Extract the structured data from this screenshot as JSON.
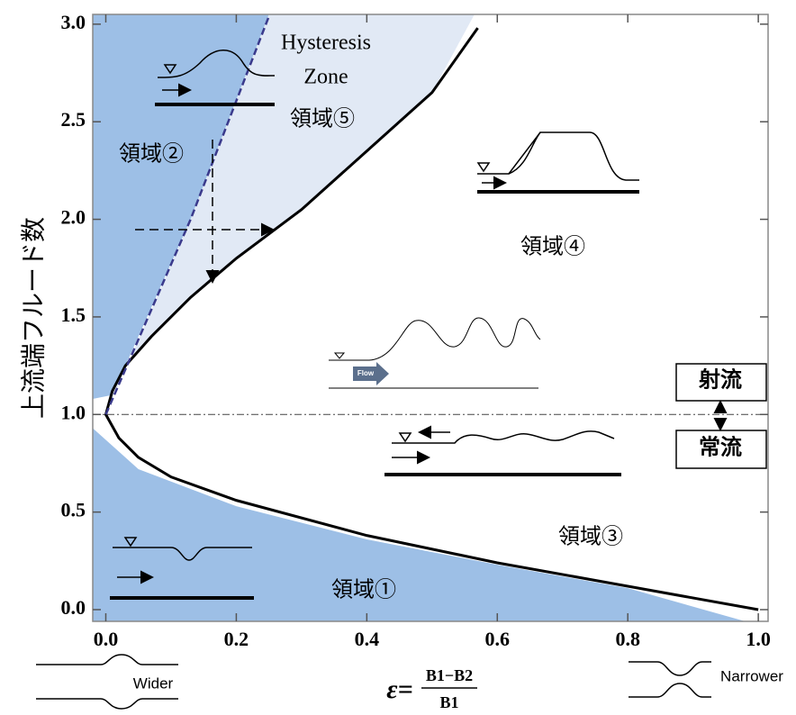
{
  "chart_data": {
    "type": "line",
    "ylabel": "上流端フルード数",
    "xlabel": {
      "symbol": "ε=",
      "numerator": "B1−B2",
      "denominator": "B1"
    },
    "xlim": [
      -0.02,
      1.015
    ],
    "ylim": [
      -0.06,
      3.05
    ],
    "xticks": [
      {
        "value": 0,
        "label": "0.0"
      },
      0.2,
      0.4,
      0.6,
      0.8,
      {
        "value": 1,
        "label": "1.0"
      }
    ],
    "yticks": [
      {
        "value": 0,
        "label": "0.0"
      },
      0.5,
      {
        "value": 1,
        "label": "1.0"
      },
      1.5,
      {
        "value": 2,
        "label": "2.0"
      },
      2.5,
      {
        "value": 3,
        "label": "3.0"
      }
    ],
    "hline": 1,
    "regions": [
      {
        "color": "#9dbfe6",
        "x": [
          -0.02,
          0.25,
          0.13,
          0.01,
          -0.02
        ],
        "y": [
          3.05,
          3.05,
          2.0,
          1.1,
          1.08
        ]
      },
      {
        "color": "#e1e9f5",
        "x": [
          0.25,
          0.565,
          0.5,
          0.4,
          0.3,
          0.2,
          0.13,
          0.07,
          0.03,
          0.01,
          0.0,
          0.13
        ],
        "y": [
          3.05,
          3.05,
          2.65,
          2.35,
          2.05,
          1.8,
          1.6,
          1.4,
          1.25,
          1.12,
          1.0,
          2.0
        ]
      },
      {
        "color": "#9dbfe6",
        "x": [
          -0.02,
          0.05,
          0.2,
          0.4,
          0.6,
          0.8,
          0.98,
          -0.02
        ],
        "y": [
          0.93,
          0.72,
          0.53,
          0.36,
          0.23,
          0.11,
          -0.06,
          -0.06
        ]
      }
    ],
    "lines": [
      {
        "color": "#000000",
        "dash": false,
        "x": [
          1.0,
          0.8,
          0.6,
          0.4,
          0.2,
          0.1,
          0.05,
          0.02,
          0.0,
          0.01,
          0.03,
          0.07,
          0.13,
          0.2,
          0.3,
          0.4,
          0.5,
          0.57
        ],
        "y": [
          0.0,
          0.12,
          0.24,
          0.38,
          0.56,
          0.68,
          0.78,
          0.88,
          1.0,
          1.12,
          1.25,
          1.4,
          1.6,
          1.8,
          2.05,
          2.35,
          2.65,
          2.98
        ]
      },
      {
        "color": "#3a3a8c",
        "dash": true,
        "x": [
          0.0,
          0.13,
          0.25
        ],
        "y": [
          1.0,
          2.0,
          3.04
        ]
      }
    ],
    "annotations": [
      "Hysteresis",
      "Zone",
      "領域⑤",
      "領域②",
      "領域④",
      "領域③",
      "領域①"
    ],
    "flow_labels": [
      "射流",
      "常流"
    ],
    "channel_labels": [
      "Wider",
      "Narrower"
    ],
    "flow_arrow": "Flow"
  }
}
